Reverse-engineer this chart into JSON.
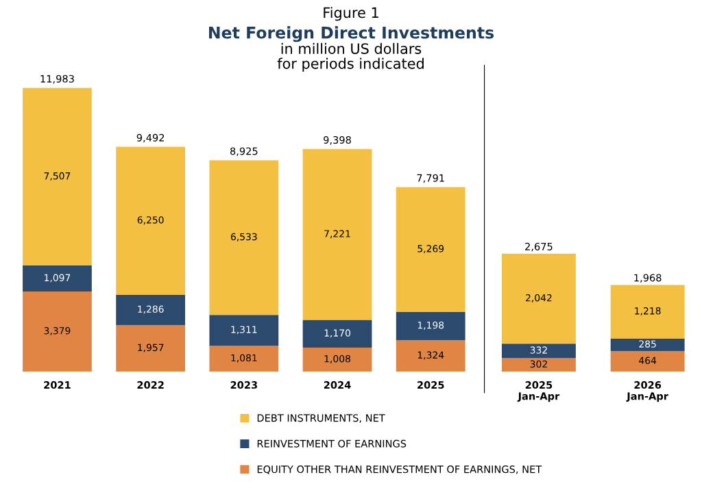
{
  "chart_data": [
    {
      "type": "bar",
      "stacked": true,
      "title": "Net Foreign Direct Investments",
      "subtitle": "in million US dollars\nfor periods indicated",
      "annotations": [
        "Figure 1"
      ],
      "categories": [
        "2021",
        "2022",
        "2023",
        "2024",
        "2025"
      ],
      "series": [
        {
          "name": "EQUITY OTHER THAN REINVESTMENT OF EARNINGS, NET",
          "color": "#e08544",
          "values": [
            3379,
            1957,
            1081,
            1008,
            1324
          ],
          "value_labels": [
            "3,379",
            "1,957",
            "1,081",
            "1,008",
            "1,324"
          ]
        },
        {
          "name": "REINVESTMENT OF EARNINGS",
          "color": "#2c4a6e",
          "values": [
            1097,
            1286,
            1311,
            1170,
            1198
          ],
          "value_labels": [
            "1,097",
            "1,286",
            "1,311",
            "1,170",
            "1,198"
          ]
        },
        {
          "name": "DEBT INSTRUMENTS, NET",
          "color": "#f4c042",
          "values": [
            7507,
            6250,
            6533,
            7221,
            5269
          ],
          "value_labels": [
            "7,507",
            "6,250",
            "6,533",
            "7,221",
            "5,269"
          ]
        }
      ],
      "totals": [
        "11,983",
        "9,492",
        "8,925",
        "9,398",
        "7,791"
      ],
      "legend": "bottom"
    },
    {
      "type": "bar",
      "stacked": true,
      "categories": [
        "2025\nJan-Apr",
        "2026\nJan-Apr"
      ],
      "series": [
        {
          "color": "#e08544",
          "values": [
            302,
            464
          ],
          "value_labels": [
            "302",
            "464"
          ]
        },
        {
          "color": "#2c4a6e",
          "values": [
            332,
            285
          ],
          "value_labels": [
            "332",
            "285"
          ]
        },
        {
          "color": "#f4c042",
          "values": [
            2042,
            1218
          ],
          "value_labels": [
            "2,042",
            "1,218"
          ]
        }
      ],
      "totals": [
        "2,675",
        "1,968"
      ]
    }
  ]
}
